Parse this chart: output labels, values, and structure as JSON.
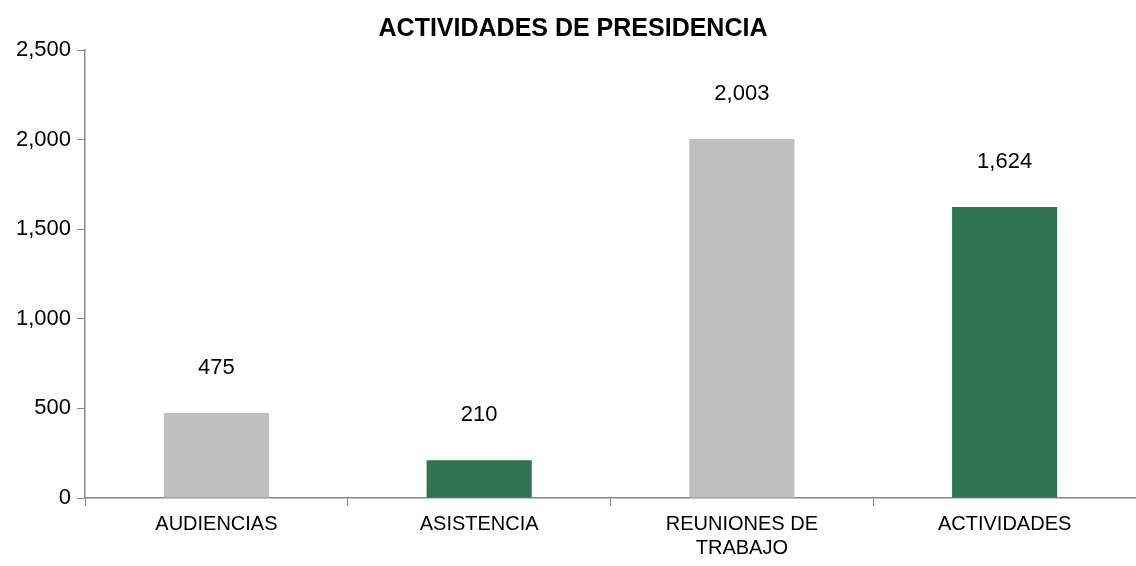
{
  "chart_data": {
    "type": "bar",
    "title": "ACTIVIDADES DE PRESIDENCIA",
    "categories": [
      "AUDIENCIAS",
      "ASISTENCIA",
      "REUNIONES DE TRABAJO",
      "ACTIVIDADES"
    ],
    "values": [
      475,
      210,
      2003,
      1624
    ],
    "colors": [
      "#bfbfbf",
      "#2e7352",
      "#bfbfbf",
      "#2e7352"
    ],
    "value_labels": [
      "475",
      "210",
      "2,003",
      "1,624"
    ],
    "ylim": [
      0,
      2500
    ],
    "yticks": [
      {
        "value": 0,
        "label": "0"
      },
      {
        "value": 500,
        "label": "500"
      },
      {
        "value": 1000,
        "label": "1,000"
      },
      {
        "value": 1500,
        "label": "1,500"
      },
      {
        "value": 2000,
        "label": "2,000"
      },
      {
        "value": 2500,
        "label": "2,500"
      }
    ],
    "grid": false,
    "legend": false
  }
}
